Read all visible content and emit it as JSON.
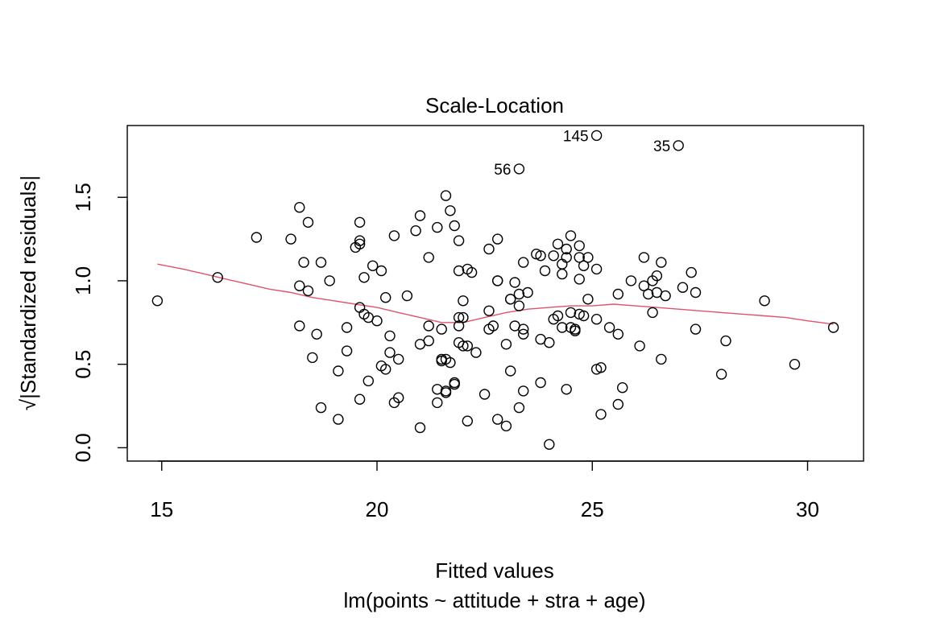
{
  "chart_data": {
    "type": "scatter",
    "title": "Scale-Location",
    "xlabel": "Fitted values",
    "subtitle": "lm(points ~ attitude + stra + age)",
    "ylabel": "√|Standardized residuals|",
    "xlim": [
      14.2,
      31.3
    ],
    "ylim": [
      -0.08,
      1.93
    ],
    "x_ticks": [
      15,
      20,
      25,
      30
    ],
    "y_ticks": [
      0.0,
      0.5,
      1.0,
      1.5
    ],
    "x_tick_labels": [
      "15",
      "20",
      "25",
      "30"
    ],
    "y_tick_labels": [
      "0.0",
      "0.5",
      "1.0",
      "1.5"
    ],
    "grid": false,
    "point_color": "#000000",
    "smooth_color": "#DF536B",
    "points": [
      [
        14.9,
        0.88
      ],
      [
        16.3,
        1.02
      ],
      [
        17.2,
        1.26
      ],
      [
        18.0,
        1.25
      ],
      [
        18.2,
        1.44
      ],
      [
        18.2,
        0.97
      ],
      [
        18.2,
        0.73
      ],
      [
        18.3,
        1.11
      ],
      [
        18.4,
        1.35
      ],
      [
        18.4,
        0.94
      ],
      [
        18.5,
        0.54
      ],
      [
        18.6,
        0.68
      ],
      [
        18.7,
        1.11
      ],
      [
        18.7,
        0.24
      ],
      [
        18.9,
        1.0
      ],
      [
        19.1,
        0.46
      ],
      [
        19.1,
        0.17
      ],
      [
        19.3,
        0.58
      ],
      [
        19.3,
        0.72
      ],
      [
        19.5,
        1.2
      ],
      [
        19.6,
        1.22
      ],
      [
        19.6,
        1.24
      ],
      [
        19.6,
        1.35
      ],
      [
        19.6,
        0.29
      ],
      [
        19.6,
        0.84
      ],
      [
        19.7,
        1.02
      ],
      [
        19.7,
        0.8
      ],
      [
        19.8,
        0.4
      ],
      [
        19.8,
        0.78
      ],
      [
        19.9,
        1.09
      ],
      [
        20.0,
        0.76
      ],
      [
        20.1,
        0.49
      ],
      [
        20.1,
        1.06
      ],
      [
        20.2,
        0.9
      ],
      [
        20.2,
        0.47
      ],
      [
        20.3,
        0.57
      ],
      [
        20.3,
        0.67
      ],
      [
        20.4,
        1.27
      ],
      [
        20.4,
        0.27
      ],
      [
        20.5,
        0.3
      ],
      [
        20.5,
        0.53
      ],
      [
        20.7,
        0.91
      ],
      [
        20.9,
        1.3
      ],
      [
        21.0,
        1.39
      ],
      [
        21.0,
        0.62
      ],
      [
        21.0,
        0.12
      ],
      [
        21.2,
        0.64
      ],
      [
        21.2,
        1.14
      ],
      [
        21.2,
        0.73
      ],
      [
        21.4,
        0.35
      ],
      [
        21.4,
        0.27
      ],
      [
        21.4,
        1.32
      ],
      [
        21.5,
        0.53
      ],
      [
        21.5,
        0.52
      ],
      [
        21.5,
        0.71
      ],
      [
        21.6,
        1.51
      ],
      [
        21.6,
        0.34
      ],
      [
        21.6,
        0.33
      ],
      [
        21.6,
        0.53
      ],
      [
        21.7,
        1.42
      ],
      [
        21.7,
        0.51
      ],
      [
        21.8,
        0.38
      ],
      [
        21.8,
        0.39
      ],
      [
        21.8,
        1.33
      ],
      [
        21.9,
        1.24
      ],
      [
        21.9,
        0.78
      ],
      [
        21.9,
        0.73
      ],
      [
        21.9,
        0.63
      ],
      [
        21.9,
        1.06
      ],
      [
        22.0,
        0.88
      ],
      [
        22.0,
        0.61
      ],
      [
        22.0,
        0.78
      ],
      [
        22.1,
        1.07
      ],
      [
        22.1,
        0.61
      ],
      [
        22.1,
        0.16
      ],
      [
        22.2,
        1.05
      ],
      [
        22.3,
        0.57
      ],
      [
        22.5,
        0.32
      ],
      [
        22.6,
        1.19
      ],
      [
        22.6,
        0.71
      ],
      [
        22.6,
        0.82
      ],
      [
        22.7,
        0.73
      ],
      [
        22.8,
        1.25
      ],
      [
        22.8,
        1.0
      ],
      [
        22.8,
        1.0
      ],
      [
        22.8,
        0.17
      ],
      [
        23.0,
        0.62
      ],
      [
        23.0,
        0.13
      ],
      [
        23.1,
        0.46
      ],
      [
        23.1,
        0.89
      ],
      [
        23.1,
        0.89
      ],
      [
        23.2,
        0.99
      ],
      [
        23.2,
        0.73
      ],
      [
        23.3,
        0.85
      ],
      [
        23.3,
        0.24
      ],
      [
        23.3,
        0.92
      ],
      [
        23.4,
        0.71
      ],
      [
        23.4,
        0.68
      ],
      [
        23.4,
        0.34
      ],
      [
        23.4,
        1.11
      ],
      [
        23.5,
        0.93
      ],
      [
        23.7,
        1.16
      ],
      [
        23.8,
        0.65
      ],
      [
        23.8,
        0.39
      ],
      [
        23.8,
        1.15
      ],
      [
        23.9,
        1.06
      ],
      [
        24.0,
        0.63
      ],
      [
        24.0,
        0.02
      ],
      [
        24.1,
        1.15
      ],
      [
        24.1,
        0.77
      ],
      [
        24.2,
        1.22
      ],
      [
        24.2,
        0.79
      ],
      [
        24.3,
        1.1
      ],
      [
        24.3,
        0.72
      ],
      [
        24.3,
        1.04
      ],
      [
        24.4,
        1.14
      ],
      [
        24.4,
        1.19
      ],
      [
        24.4,
        0.35
      ],
      [
        24.5,
        0.81
      ],
      [
        24.5,
        1.27
      ],
      [
        24.5,
        0.72
      ],
      [
        24.6,
        0.71
      ],
      [
        24.6,
        0.7
      ],
      [
        24.7,
        1.01
      ],
      [
        24.7,
        1.14
      ],
      [
        24.7,
        1.21
      ],
      [
        24.7,
        0.8
      ],
      [
        24.8,
        1.09
      ],
      [
        24.8,
        0.79
      ],
      [
        24.9,
        1.14
      ],
      [
        24.9,
        0.89
      ],
      [
        25.1,
        1.07
      ],
      [
        25.1,
        0.77
      ],
      [
        25.1,
        0.47
      ],
      [
        25.2,
        0.48
      ],
      [
        25.2,
        0.2
      ],
      [
        25.4,
        0.72
      ],
      [
        25.6,
        0.92
      ],
      [
        25.6,
        0.68
      ],
      [
        25.6,
        0.26
      ],
      [
        25.7,
        0.36
      ],
      [
        25.9,
        1.0
      ],
      [
        26.1,
        0.61
      ],
      [
        26.2,
        0.97
      ],
      [
        26.2,
        1.14
      ],
      [
        26.3,
        0.92
      ],
      [
        26.4,
        1.0
      ],
      [
        26.4,
        0.81
      ],
      [
        26.5,
        0.93
      ],
      [
        26.5,
        1.03
      ],
      [
        26.6,
        0.53
      ],
      [
        26.6,
        1.11
      ],
      [
        26.7,
        0.91
      ],
      [
        27.1,
        0.96
      ],
      [
        27.3,
        1.05
      ],
      [
        27.4,
        0.71
      ],
      [
        27.4,
        0.93
      ],
      [
        28.0,
        0.44
      ],
      [
        28.1,
        0.64
      ],
      [
        29.0,
        0.88
      ],
      [
        29.7,
        0.5
      ],
      [
        30.6,
        0.72
      ],
      [
        23.3,
        1.67
      ],
      [
        25.1,
        1.87
      ],
      [
        27.0,
        1.81
      ]
    ],
    "labeled_points": [
      {
        "label": "56",
        "x": 23.3,
        "y": 1.67
      },
      {
        "label": "145",
        "x": 25.1,
        "y": 1.87
      },
      {
        "label": "35",
        "x": 27.0,
        "y": 1.81
      }
    ],
    "smooth_line": [
      [
        14.9,
        1.1
      ],
      [
        15.5,
        1.07
      ],
      [
        16.0,
        1.04
      ],
      [
        16.5,
        1.01
      ],
      [
        17.0,
        0.98
      ],
      [
        17.5,
        0.95
      ],
      [
        18.0,
        0.93
      ],
      [
        18.5,
        0.9
      ],
      [
        19.0,
        0.88
      ],
      [
        19.5,
        0.86
      ],
      [
        20.0,
        0.84
      ],
      [
        20.5,
        0.81
      ],
      [
        21.0,
        0.78
      ],
      [
        21.5,
        0.75
      ],
      [
        22.0,
        0.75
      ],
      [
        22.5,
        0.78
      ],
      [
        23.0,
        0.81
      ],
      [
        23.5,
        0.83
      ],
      [
        24.0,
        0.84
      ],
      [
        24.5,
        0.85
      ],
      [
        25.0,
        0.85
      ],
      [
        25.5,
        0.86
      ],
      [
        26.0,
        0.85
      ],
      [
        26.5,
        0.84
      ],
      [
        27.0,
        0.83
      ],
      [
        27.5,
        0.82
      ],
      [
        28.0,
        0.81
      ],
      [
        28.5,
        0.8
      ],
      [
        29.0,
        0.79
      ],
      [
        29.5,
        0.78
      ],
      [
        30.0,
        0.76
      ],
      [
        30.6,
        0.74
      ]
    ]
  }
}
